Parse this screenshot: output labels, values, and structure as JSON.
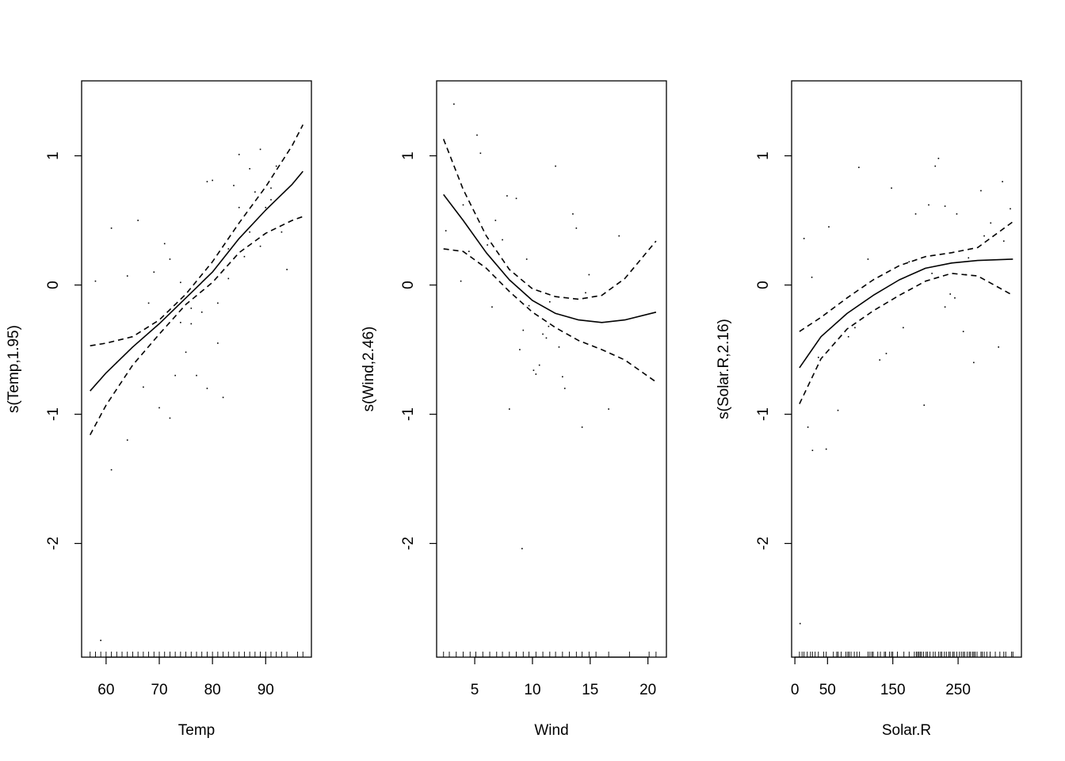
{
  "chart_data": [
    {
      "type": "line",
      "title": "",
      "xlabel": "Temp",
      "ylabel": "s(Temp,1.95)",
      "xlim": [
        55.4,
        98.6
      ],
      "ylim": [
        -2.88,
        1.58
      ],
      "xticks": [
        60,
        70,
        80,
        90
      ],
      "yticks": [
        -2,
        -1,
        0,
        1
      ],
      "grid": false,
      "legend": "none",
      "series": [
        {
          "role": "fit",
          "style": "solid",
          "x": [
            57,
            60,
            65,
            70,
            75,
            80,
            85,
            90,
            95,
            97
          ],
          "y": [
            -0.82,
            -0.68,
            -0.48,
            -0.3,
            -0.1,
            0.1,
            0.36,
            0.58,
            0.78,
            0.88
          ]
        },
        {
          "role": "upper",
          "style": "dashed",
          "x": [
            57,
            60,
            65,
            70,
            75,
            80,
            85,
            90,
            95,
            97
          ],
          "y": [
            -0.47,
            -0.45,
            -0.4,
            -0.27,
            -0.07,
            0.18,
            0.48,
            0.76,
            1.08,
            1.24
          ]
        },
        {
          "role": "lower",
          "style": "dashed",
          "x": [
            57,
            60,
            65,
            70,
            75,
            80,
            85,
            90,
            95,
            97
          ],
          "y": [
            -1.16,
            -0.93,
            -0.62,
            -0.38,
            -0.15,
            0.02,
            0.25,
            0.4,
            0.5,
            0.53
          ]
        }
      ],
      "residuals": {
        "x": [
          58,
          59,
          61,
          62,
          64,
          66,
          67,
          68,
          69,
          70,
          71,
          72,
          73,
          74,
          75,
          76,
          77,
          78,
          79,
          80,
          81,
          82,
          83,
          84,
          85,
          86,
          87,
          88,
          89,
          90,
          91,
          92,
          93,
          61,
          64,
          72,
          74,
          76,
          79,
          81,
          83,
          85,
          87,
          89,
          91,
          94
        ],
        "y": [
          0.03,
          -2.75,
          0.44,
          -0.6,
          0.07,
          0.5,
          -0.79,
          -0.14,
          0.1,
          -0.95,
          0.32,
          -1.03,
          -0.7,
          -0.29,
          -0.52,
          -0.3,
          -0.7,
          -0.21,
          0.8,
          0.81,
          -0.14,
          -0.87,
          0.28,
          0.77,
          1.01,
          0.22,
          0.41,
          0.72,
          1.05,
          0.6,
          0.66,
          0.92,
          0.41,
          -1.43,
          -1.2,
          0.2,
          0.02,
          -0.18,
          -0.8,
          -0.45,
          0.05,
          0.6,
          0.9,
          0.3,
          0.75,
          0.12
        ]
      },
      "rug": [
        57,
        58,
        59,
        60,
        61,
        62,
        63,
        64,
        65,
        66,
        67,
        68,
        69,
        70,
        71,
        72,
        73,
        74,
        75,
        76,
        77,
        78,
        79,
        80,
        81,
        82,
        83,
        84,
        85,
        86,
        87,
        88,
        89,
        90,
        91,
        92,
        93,
        94,
        96,
        97
      ]
    },
    {
      "type": "line",
      "title": "",
      "xlabel": "Wind",
      "ylabel": "s(Wind,2.46)",
      "xlim": [
        1.7,
        21.6
      ],
      "ylim": [
        -2.88,
        1.58
      ],
      "xticks": [
        5,
        10,
        15,
        20
      ],
      "yticks": [
        -2,
        -1,
        0,
        1
      ],
      "grid": false,
      "legend": "none",
      "series": [
        {
          "role": "fit",
          "style": "solid",
          "x": [
            2.3,
            4,
            6,
            8,
            10,
            12,
            14,
            16,
            18,
            20.7
          ],
          "y": [
            0.7,
            0.5,
            0.25,
            0.04,
            -0.12,
            -0.22,
            -0.27,
            -0.29,
            -0.27,
            -0.21
          ]
        },
        {
          "role": "upper",
          "style": "dashed",
          "x": [
            2.3,
            4,
            6,
            8,
            10,
            12,
            14,
            16,
            18,
            20.7
          ],
          "y": [
            1.13,
            0.74,
            0.38,
            0.12,
            -0.03,
            -0.09,
            -0.11,
            -0.08,
            0.05,
            0.34
          ]
        },
        {
          "role": "lower",
          "style": "dashed",
          "x": [
            2.3,
            4,
            6,
            8,
            10,
            12,
            14,
            16,
            18,
            20.7
          ],
          "y": [
            0.28,
            0.26,
            0.13,
            -0.05,
            -0.21,
            -0.33,
            -0.43,
            -0.5,
            -0.58,
            -0.75
          ]
        },
        {
          "role": "placeholder",
          "style": "none",
          "x": [],
          "y": []
        }
      ],
      "residuals": {
        "x": [
          2.5,
          3.2,
          3.8,
          4.5,
          5.2,
          6.1,
          6.8,
          7.4,
          8.0,
          8.6,
          9.1,
          9.7,
          10.3,
          10.9,
          11.5,
          12.0,
          12.6,
          13.2,
          13.8,
          14.3,
          14.9,
          16.6,
          17.5,
          6.5,
          7.8,
          8.9,
          9.5,
          10.6,
          11.4,
          12.3,
          13.5,
          14.6,
          4.0,
          5.5,
          9.2,
          10.1,
          11.2,
          12.8
        ],
        "y": [
          0.42,
          1.4,
          0.03,
          0.26,
          1.16,
          0.31,
          0.5,
          0.35,
          -0.96,
          0.67,
          -2.04,
          -0.16,
          -0.69,
          -0.38,
          -0.13,
          0.92,
          -0.71,
          -0.25,
          0.44,
          -1.1,
          0.08,
          -0.96,
          0.38,
          -0.17,
          0.69,
          -0.5,
          0.2,
          -0.62,
          -0.32,
          -0.48,
          0.55,
          -0.06,
          0.62,
          1.02,
          -0.35,
          -0.66,
          -0.41,
          -0.8
        ]
      },
      "rug": [
        2.3,
        2.8,
        3.4,
        4.0,
        4.6,
        5.1,
        5.7,
        6.3,
        6.9,
        7.4,
        8.0,
        8.6,
        9.2,
        9.7,
        10.3,
        10.9,
        11.5,
        12.0,
        12.6,
        13.2,
        13.8,
        14.3,
        14.9,
        15.5,
        16.6,
        18.4,
        20.1,
        20.7
      ]
    },
    {
      "type": "line",
      "title": "",
      "xlabel": "Solar.R",
      "ylabel": "s(Solar.R,2.16)",
      "xlim": [
        -5,
        347
      ],
      "ylim": [
        -2.88,
        1.58
      ],
      "xticks": [
        0,
        50,
        150,
        250
      ],
      "yticks": [
        -2,
        -1,
        0,
        1
      ],
      "grid": false,
      "legend": "none",
      "series": [
        {
          "role": "fit",
          "style": "solid",
          "x": [
            7,
            40,
            80,
            120,
            160,
            200,
            240,
            280,
            334
          ],
          "y": [
            -0.64,
            -0.4,
            -0.22,
            -0.08,
            0.04,
            0.13,
            0.17,
            0.19,
            0.2
          ]
        },
        {
          "role": "upper",
          "style": "dashed",
          "x": [
            7,
            40,
            80,
            120,
            160,
            200,
            240,
            280,
            334
          ],
          "y": [
            -0.36,
            -0.25,
            -0.1,
            0.04,
            0.15,
            0.22,
            0.25,
            0.29,
            0.49
          ]
        },
        {
          "role": "lower",
          "style": "dashed",
          "x": [
            7,
            40,
            80,
            120,
            160,
            200,
            240,
            280,
            334
          ],
          "y": [
            -0.92,
            -0.57,
            -0.34,
            -0.2,
            -0.08,
            0.03,
            0.09,
            0.07,
            -0.08
          ]
        }
      ],
      "residuals": {
        "x": [
          8,
          14,
          20,
          27,
          36,
          48,
          66,
          82,
          98,
          112,
          130,
          148,
          166,
          185,
          198,
          210,
          220,
          230,
          238,
          248,
          258,
          266,
          274,
          285,
          300,
          312,
          320,
          26,
          52,
          92,
          140,
          175,
          205,
          245,
          262,
          290,
          318,
          330,
          215,
          230
        ],
        "y": [
          -2.62,
          0.36,
          -1.1,
          -1.28,
          -0.56,
          -1.27,
          -0.97,
          -0.4,
          0.91,
          0.2,
          -0.58,
          0.75,
          -0.33,
          0.55,
          -0.93,
          0.09,
          0.98,
          0.61,
          -0.07,
          0.55,
          -0.36,
          0.21,
          -0.6,
          0.73,
          0.48,
          -0.48,
          0.34,
          0.06,
          0.45,
          -0.33,
          -0.53,
          0.18,
          0.62,
          -0.1,
          0.08,
          0.38,
          0.8,
          0.59,
          0.92,
          -0.17
        ]
      },
      "rug": [
        7,
        11,
        14,
        19,
        24,
        27,
        31,
        36,
        44,
        48,
        59,
        64,
        66,
        71,
        78,
        81,
        83,
        86,
        91,
        95,
        99,
        112,
        115,
        118,
        120,
        127,
        131,
        137,
        139,
        145,
        148,
        150,
        157,
        167,
        175,
        183,
        186,
        188,
        190,
        192,
        194,
        197,
        201,
        203,
        207,
        212,
        215,
        220,
        223,
        225,
        229,
        232,
        236,
        238,
        242,
        244,
        248,
        252,
        255,
        258,
        260,
        264,
        267,
        269,
        272,
        274,
        276,
        279,
        285,
        287,
        290,
        294,
        299,
        307,
        314,
        320,
        323,
        332,
        334
      ]
    }
  ]
}
